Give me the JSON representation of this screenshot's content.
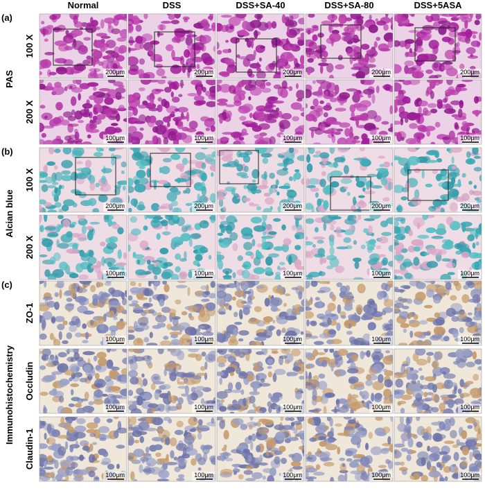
{
  "columns": [
    "Normal",
    "DSS",
    "DSS+SA-40",
    "DSS+SA-80",
    "DSS+5ASA"
  ],
  "sections": [
    {
      "label": "(a)",
      "stain": "PAS",
      "rows": [
        {
          "label": "100 X",
          "scale": "200μm"
        },
        {
          "label": "200 X",
          "scale": "100μm"
        }
      ]
    },
    {
      "label": "(b)",
      "stain": "Alcian blue",
      "rows": [
        {
          "label": "100 X",
          "scale": "200μm"
        },
        {
          "label": "200 X",
          "scale": "100μm"
        }
      ]
    },
    {
      "label": "(c)",
      "stain": "Immunohistochemistry",
      "rows": [
        {
          "label": "ZO-1",
          "scale": "100μm"
        },
        {
          "label": "Occludin",
          "scale": "100μm"
        },
        {
          "label": "Claudin-1",
          "scale": "100μm"
        }
      ]
    }
  ]
}
